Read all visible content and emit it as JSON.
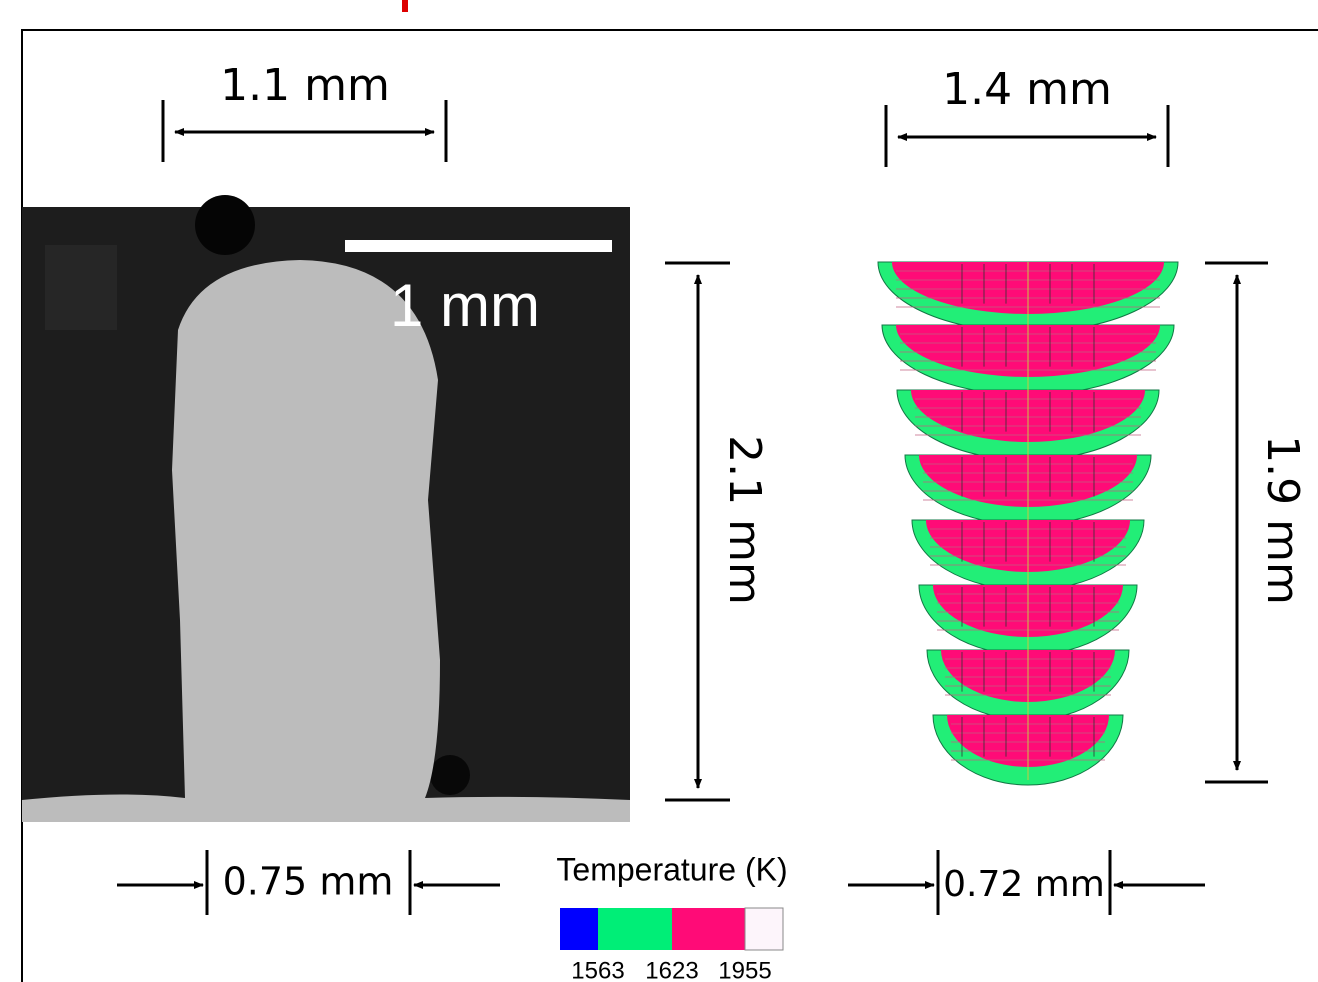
{
  "figure": {
    "experiment": {
      "width_label": "1.1 mm",
      "scale_bar_label": "1 mm",
      "height_label": "2.1 mm",
      "base_label": "0.75 mm"
    },
    "simulation": {
      "width_label": "1.4 mm",
      "height_label": "1.9 mm",
      "base_label": "0.72 mm"
    },
    "legend": {
      "title": "Temperature (K)",
      "ticks": [
        "1563",
        "1623",
        "1955"
      ]
    }
  }
}
